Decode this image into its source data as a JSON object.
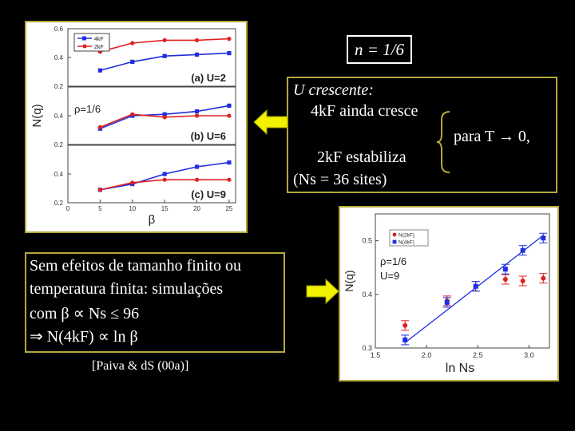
{
  "header": {
    "n_value": "n = 1/6"
  },
  "info_box": {
    "line1": "U crescente:",
    "line2": "4kF ainda cresce",
    "line3": "2kF estabiliza",
    "line4": "(Ns = 36 sites)",
    "side_note": "para T → 0,"
  },
  "bottom_box": {
    "line1": "Sem efeitos de tamanho finito ou",
    "line2": "temperatura finita: simulações",
    "line3": "com β ∝ Ns ≤ 96",
    "line4": "⇒ N(4kF) ∝ ln β"
  },
  "citation": "[Paiva & dS (00a)]",
  "colors": {
    "olive": "#b3a83a",
    "red": "#e02020",
    "blue": "#1e2ee0",
    "arrow": "#f2f200"
  },
  "chart_data": [
    {
      "type": "line",
      "ylabel": "N(q)",
      "xlabel": "β",
      "rho_label": "ρ=1/6",
      "legend": [
        "4kF",
        "2kF"
      ],
      "x_ticks": [
        "0",
        "5",
        "10",
        "15",
        "20",
        "25"
      ],
      "panels": [
        {
          "label": "(a) U=2",
          "y_ticks": [
            "0.6",
            "0.4",
            "0.2"
          ],
          "ylim": [
            0.2,
            0.6
          ],
          "series": [
            {
              "name": "4kF",
              "color": "blue",
              "x": [
                5,
                10,
                15,
                20,
                25
              ],
              "y": [
                0.31,
                0.37,
                0.41,
                0.42,
                0.43
              ]
            },
            {
              "name": "2kF",
              "color": "red",
              "x": [
                5,
                10,
                15,
                20,
                25
              ],
              "y": [
                0.44,
                0.5,
                0.52,
                0.52,
                0.53
              ]
            }
          ]
        },
        {
          "label": "(b) U=6",
          "y_ticks": [
            "0.4",
            "0.2"
          ],
          "ylim": [
            0.2,
            0.6
          ],
          "series": [
            {
              "name": "4kF",
              "color": "blue",
              "x": [
                5,
                10,
                15,
                20,
                25
              ],
              "y": [
                0.31,
                0.4,
                0.41,
                0.43,
                0.47
              ]
            },
            {
              "name": "2kF",
              "color": "red",
              "x": [
                5,
                10,
                15,
                20,
                25
              ],
              "y": [
                0.32,
                0.41,
                0.39,
                0.4,
                0.4
              ]
            }
          ]
        },
        {
          "label": "(c) U=9",
          "y_ticks": [
            "0.4",
            "0.2"
          ],
          "ylim": [
            0.2,
            0.6
          ],
          "series": [
            {
              "name": "4kF",
              "color": "blue",
              "x": [
                5,
                10,
                15,
                20,
                25
              ],
              "y": [
                0.29,
                0.33,
                0.4,
                0.45,
                0.48
              ]
            },
            {
              "name": "2kF",
              "color": "red",
              "x": [
                5,
                10,
                15,
                20,
                25
              ],
              "y": [
                0.29,
                0.34,
                0.36,
                0.36,
                0.36
              ]
            }
          ]
        }
      ]
    },
    {
      "type": "scatter",
      "ylabel": "N(q)",
      "xlabel": "ln Ns",
      "rho_label": "ρ=1/6",
      "u_label": "U=9",
      "legend": [
        "N(2kF)",
        "N(4kF)"
      ],
      "x_ticks": [
        "1.5",
        "2.0",
        "2.5",
        "3.0"
      ],
      "y_ticks": [
        "0.5",
        "0.4",
        "0.3"
      ],
      "xlim": [
        1.5,
        3.2
      ],
      "ylim": [
        0.3,
        0.55
      ],
      "series": [
        {
          "name": "N(2kF)",
          "color": "red",
          "x": [
            1.79,
            2.2,
            2.48,
            2.77,
            2.94,
            3.14
          ],
          "y": [
            0.342,
            0.388,
            0.415,
            0.428,
            0.425,
            0.43
          ]
        },
        {
          "name": "N(4kF)",
          "color": "blue",
          "x": [
            1.79,
            2.2,
            2.48,
            2.77,
            2.94,
            3.14
          ],
          "y": [
            0.315,
            0.385,
            0.415,
            0.447,
            0.482,
            0.505
          ]
        }
      ],
      "fit_line": {
        "x": [
          1.79,
          3.14
        ],
        "y": [
          0.31,
          0.51
        ]
      }
    }
  ]
}
